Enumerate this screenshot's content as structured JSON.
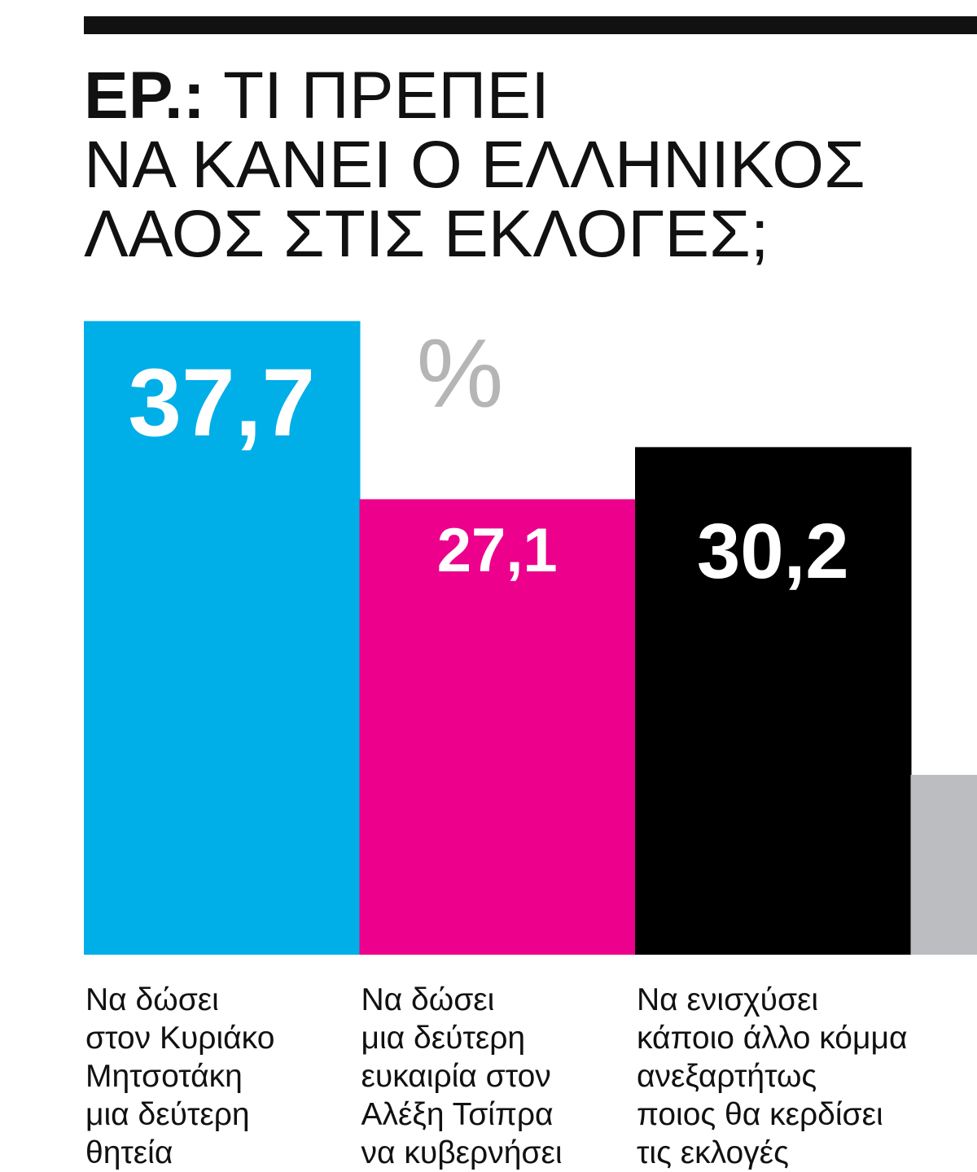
{
  "chart_data": {
    "type": "bar",
    "title_prefix": "ΕΡ.:",
    "title_lines": [
      "ΤΙ ΠΡΕΠΕΙ",
      "ΝΑ ΚΑΝΕΙ Ο ΕΛΛΗΝΙΚΟΣ",
      "ΛΑΟΣ ΣΤΙΣ ΕΚΛΟΓΕΣ;"
    ],
    "unit_label": "%",
    "categories": [
      "Να δώσει\nστον Κυριάκο\nΜητσοτάκη\nμια δεύτερη\nθητεία",
      "Να δώσει\nμια δεύτερη\nευκαιρία στον\nΑλέξη Τσίπρα\nνα κυβερνήσει",
      "Να ενισχύσει\nκάποιο άλλο κόμμα\nανεξαρτήτως\nποιος θα κερδίσει\nτις εκλογές",
      null
    ],
    "values": [
      37.7,
      27.1,
      30.2,
      10.7
    ],
    "value_labels": [
      "37,7",
      "27,1",
      "30,2",
      null
    ],
    "colors": [
      "#00aee8",
      "#ec008c",
      "#000000",
      "#bcbdc0"
    ],
    "ylim": [
      0,
      40
    ]
  }
}
